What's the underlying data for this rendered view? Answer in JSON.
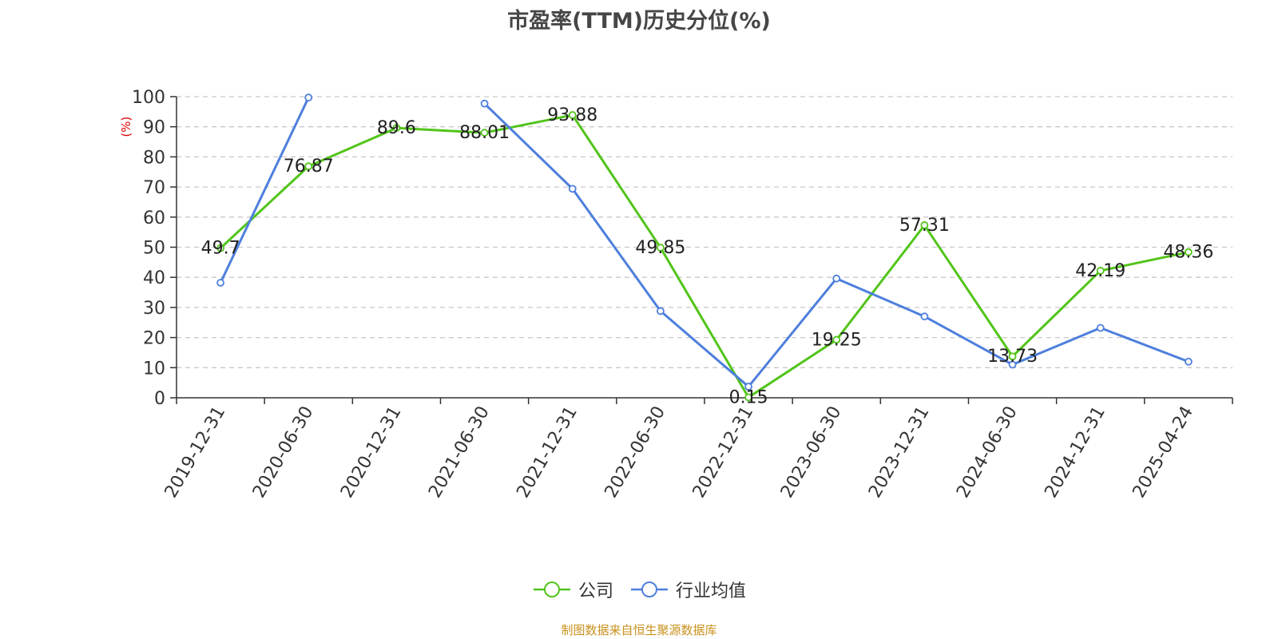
{
  "chart_data": {
    "type": "line",
    "title": "市盈率(TTM)历史分位(%)",
    "ylabel": "(%)",
    "ylim": [
      0,
      100
    ],
    "yticks": [
      0,
      10,
      20,
      30,
      40,
      50,
      60,
      70,
      80,
      90,
      100
    ],
    "grid": true,
    "legend_position": "bottom",
    "categories": [
      "2019-12-31",
      "2020-06-30",
      "2020-12-31",
      "2021-06-30",
      "2021-12-31",
      "2022-06-30",
      "2022-12-31",
      "2023-06-30",
      "2023-12-31",
      "2024-06-30",
      "2024-12-31",
      "2025-04-24"
    ],
    "series": [
      {
        "name": "公司",
        "color": "#52c41a",
        "values": [
          49.7,
          76.87,
          89.6,
          88.01,
          93.88,
          49.85,
          0.15,
          19.25,
          57.31,
          13.73,
          42.19,
          48.36
        ],
        "labels": [
          "49.7",
          "76.87",
          "89.6",
          "88.01",
          "93.88",
          "49.85",
          "0.15",
          "19.25",
          "57.31",
          "13.73",
          "42.19",
          "48.36"
        ]
      },
      {
        "name": "行业均值",
        "color": "#4e7fdc",
        "values": [
          38.2,
          99.7,
          null,
          97.7,
          69.4,
          28.8,
          3.7,
          39.6,
          27.0,
          11.0,
          23.2,
          12.0
        ]
      }
    ],
    "source": "制图数据来自恒生聚源数据库"
  }
}
